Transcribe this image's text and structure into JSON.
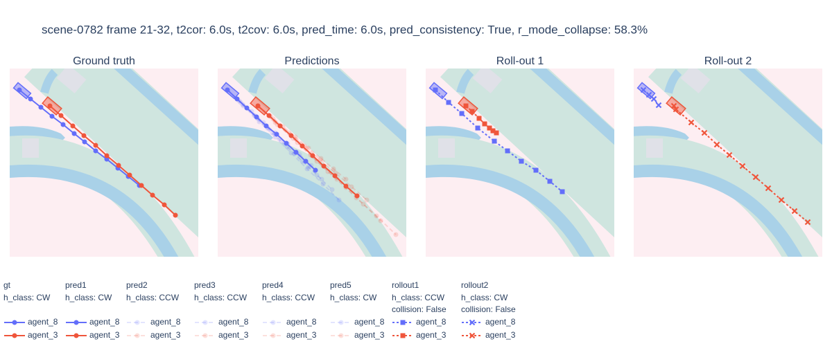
{
  "title": "scene-0782 frame 21-32, t2cor: 6.0s, t2cov: 6.0s, pred_time: 6.0s, pred_consistency: True, r_mode_collapse: 58.3%",
  "chart_data": [
    {
      "type": "line",
      "title": "Ground truth",
      "xlim": [
        0,
        272
      ],
      "ylim": [
        272,
        0
      ],
      "series": [
        {
          "name": "agent_8",
          "group": "gt",
          "color": "#636efa",
          "opacity": 1,
          "dash": "solid",
          "marker": "circle",
          "x": [
            14,
            30,
            45,
            61,
            77,
            93,
            108,
            124,
            140,
            156,
            171,
            187
          ],
          "values": [
            31,
            44,
            56,
            69,
            81,
            94,
            106,
            119,
            131,
            144,
            156,
            169
          ]
        },
        {
          "name": "agent_3",
          "group": "gt",
          "color": "#ef553b",
          "opacity": 1,
          "dash": "solid",
          "marker": "circle",
          "x": [
            58,
            74,
            91,
            107,
            124,
            140,
            157,
            173,
            190,
            206,
            223,
            239
          ],
          "values": [
            54,
            68,
            83,
            97,
            111,
            126,
            140,
            154,
            169,
            183,
            197,
            212
          ]
        }
      ]
    },
    {
      "type": "line",
      "title": "Predictions",
      "xlim": [
        0,
        272
      ],
      "ylim": [
        272,
        0
      ],
      "series": [
        {
          "name": "agent_8",
          "group": "pred2",
          "color": "#636efa",
          "opacity": 0.18,
          "dash": "dash",
          "marker": "circle",
          "x": [
            14,
            37,
            60,
            83,
            106,
            129,
            152,
            175
          ],
          "values": [
            31,
            54,
            77,
            99,
            122,
            145,
            167,
            190
          ]
        },
        {
          "name": "agent_3",
          "group": "pred2",
          "color": "#ef553b",
          "opacity": 0.18,
          "dash": "dash",
          "marker": "circle",
          "x": [
            58,
            80,
            103,
            125,
            148,
            170,
            193,
            215
          ],
          "values": [
            54,
            73,
            93,
            112,
            132,
            151,
            171,
            190
          ]
        },
        {
          "name": "agent_8",
          "group": "pred3",
          "color": "#636efa",
          "opacity": 0.18,
          "dash": "dash",
          "marker": "circle",
          "x": [
            14,
            33,
            53,
            72,
            92,
            111,
            131,
            150
          ],
          "values": [
            31,
            49,
            68,
            86,
            105,
            123,
            142,
            160
          ]
        },
        {
          "name": "agent_3",
          "group": "pred3",
          "color": "#ef553b",
          "opacity": 0.18,
          "dash": "dash",
          "marker": "circle",
          "x": [
            58,
            86,
            115,
            143,
            172,
            200,
            229,
            257
          ],
          "values": [
            54,
            81,
            107,
            134,
            160,
            187,
            213,
            240
          ]
        },
        {
          "name": "agent_8",
          "group": "pred4",
          "color": "#636efa",
          "opacity": 0.18,
          "dash": "dash",
          "marker": "circle",
          "x": [
            14,
            31,
            49,
            66,
            83,
            101,
            118,
            135
          ],
          "values": [
            31,
            47,
            62,
            78,
            93,
            109,
            124,
            140
          ]
        },
        {
          "name": "agent_3",
          "group": "pred4",
          "color": "#ef553b",
          "opacity": 0.18,
          "dash": "dash",
          "marker": "circle",
          "x": [
            58,
            83,
            109,
            134,
            159,
            185,
            210,
            235
          ],
          "values": [
            54,
            78,
            101,
            125,
            149,
            172,
            196,
            220
          ]
        },
        {
          "name": "agent_8",
          "group": "pred5",
          "color": "#636efa",
          "opacity": 0.18,
          "dash": "dash",
          "marker": "circle",
          "x": [
            14,
            36,
            57,
            79,
            100,
            122,
            143,
            165
          ],
          "values": [
            31,
            52,
            72,
            93,
            113,
            134,
            154,
            175
          ]
        },
        {
          "name": "agent_3",
          "group": "pred5",
          "color": "#ef553b",
          "opacity": 0.18,
          "dash": "dash",
          "marker": "circle",
          "x": [
            58,
            76,
            94,
            112,
            131,
            149,
            167,
            185
          ],
          "values": [
            54,
            69,
            84,
            99,
            115,
            130,
            145,
            160
          ]
        },
        {
          "name": "agent_8",
          "group": "pred1",
          "color": "#636efa",
          "opacity": 1,
          "dash": "solid",
          "marker": "circle",
          "x": [
            14,
            28,
            42,
            56,
            70,
            85,
            99,
            113,
            127,
            141
          ],
          "values": [
            31,
            44,
            57,
            70,
            83,
            95,
            108,
            121,
            134,
            147
          ]
        },
        {
          "name": "agent_3",
          "group": "pred1",
          "color": "#ef553b",
          "opacity": 1,
          "dash": "solid",
          "marker": "circle",
          "x": [
            58,
            74,
            90,
            106,
            122,
            137,
            153,
            169,
            185,
            201
          ],
          "values": [
            54,
            68,
            83,
            97,
            112,
            126,
            141,
            155,
            170,
            184
          ]
        }
      ]
    },
    {
      "type": "line",
      "title": "Roll-out 1",
      "xlim": [
        0,
        272
      ],
      "ylim": [
        272,
        0
      ],
      "series": [
        {
          "name": "agent_8",
          "group": "rollout1",
          "color": "#636efa",
          "opacity": 1,
          "dash": "dot",
          "marker": "square",
          "x": [
            14,
            33,
            52,
            75,
            99,
            118,
            138,
            159,
            179,
            197
          ],
          "values": [
            31,
            49,
            65,
            86,
            105,
            119,
            134,
            147,
            163,
            178
          ]
        },
        {
          "name": "agent_3",
          "group": "rollout1",
          "color": "#ef553b",
          "opacity": 1,
          "dash": "dot",
          "marker": "square",
          "x": [
            58,
            67,
            77,
            85,
            92,
            97,
            102
          ],
          "values": [
            54,
            62,
            72,
            80,
            86,
            90,
            93
          ]
        }
      ]
    },
    {
      "type": "line",
      "title": "Roll-out 2",
      "xlim": [
        0,
        272
      ],
      "ylim": [
        272,
        0
      ],
      "series": [
        {
          "name": "agent_8",
          "group": "rollout2",
          "color": "#636efa",
          "opacity": 1,
          "dash": "dot",
          "marker": "x",
          "x": [
            14,
            22,
            29,
            36
          ],
          "values": [
            31,
            38,
            44,
            53
          ]
        },
        {
          "name": "agent_3",
          "group": "rollout2",
          "color": "#ef553b",
          "opacity": 1,
          "dash": "dot",
          "marker": "x",
          "x": [
            58,
            61,
            83,
            102,
            120,
            138,
            157,
            176,
            194,
            213,
            232,
            251
          ],
          "values": [
            54,
            59,
            78,
            93,
            110,
            125,
            141,
            157,
            173,
            190,
            206,
            222
          ]
        }
      ]
    }
  ],
  "legend": {
    "groups": [
      {
        "title": "gt",
        "notes": [
          "h_class: CW"
        ]
      },
      {
        "title": "pred1",
        "notes": [
          "h_class: CW"
        ]
      },
      {
        "title": "pred2",
        "notes": [
          "h_class: CCW"
        ]
      },
      {
        "title": "pred3",
        "notes": [
          "h_class: CCW"
        ]
      },
      {
        "title": "pred4",
        "notes": [
          "h_class: CCW"
        ]
      },
      {
        "title": "pred5",
        "notes": [
          "h_class: CW"
        ]
      },
      {
        "title": "rollout1",
        "notes": [
          "h_class: CCW",
          "collision: False"
        ]
      },
      {
        "title": "rollout2",
        "notes": [
          "h_class: CW",
          "collision: False"
        ]
      }
    ]
  }
}
